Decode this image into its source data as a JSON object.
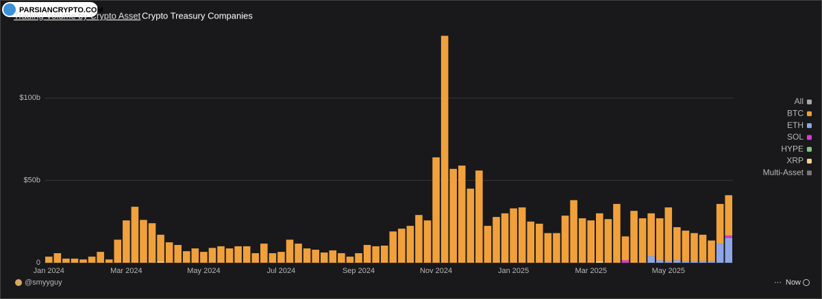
{
  "header": {
    "watermark": "PARSIANCRYPTO.COM",
    "tabs": [
      "Trading Volume by Crypto Asset",
      "Crypto Treasury Companies"
    ],
    "author": "@smyyguy",
    "time": "Now"
  },
  "chart_data": {
    "type": "bar",
    "stacked": true,
    "categories": [
      "Jan 2024",
      null,
      null,
      null,
      null,
      null,
      null,
      null,
      null,
      "Mar 2024",
      null,
      null,
      null,
      null,
      null,
      null,
      null,
      null,
      "May 2024",
      null,
      null,
      null,
      null,
      null,
      null,
      null,
      null,
      "Jul 2024",
      null,
      null,
      null,
      null,
      null,
      null,
      null,
      null,
      "Sep 2024",
      null,
      null,
      null,
      null,
      null,
      null,
      null,
      null,
      "Nov 2024",
      null,
      null,
      null,
      null,
      null,
      null,
      null,
      null,
      "Jan 2025",
      null,
      null,
      null,
      null,
      null,
      null,
      null,
      null,
      "Mar 2025",
      null,
      null,
      null,
      null,
      null,
      null,
      null,
      null,
      "May 2025",
      null,
      null,
      null,
      null,
      null,
      null,
      null
    ],
    "series": [
      {
        "name": "All",
        "color": "#a8a8a8",
        "values": [
          0,
          0,
          0,
          0,
          0,
          0,
          0,
          0,
          0,
          0,
          0,
          0,
          0,
          0,
          0,
          0,
          0,
          0,
          0,
          0,
          0,
          0,
          0,
          0,
          0,
          0,
          0,
          0,
          0,
          0,
          0,
          0,
          0,
          0,
          0,
          0,
          0,
          0,
          0,
          0,
          0,
          0,
          0,
          0,
          0,
          0,
          0,
          0,
          0,
          0,
          0,
          0,
          0,
          0,
          0,
          0,
          0,
          0,
          0,
          0,
          0,
          0,
          0,
          0,
          0,
          0,
          0,
          0,
          0,
          0,
          0,
          0,
          0,
          0,
          0,
          0,
          0,
          0,
          0,
          0
        ]
      },
      {
        "name": "BTC",
        "color": "#f0a13c",
        "values": [
          3.7,
          5.8,
          2.5,
          2.5,
          2,
          3.7,
          6.6,
          2,
          14,
          25.7,
          34,
          26,
          24,
          16.2,
          12.4,
          10.8,
          7,
          8.7,
          6.6,
          9,
          10,
          8.7,
          10,
          10,
          5.8,
          11.6,
          5.8,
          6.6,
          14,
          11.6,
          8.7,
          7.9,
          6.2,
          7.5,
          5.8,
          3.7,
          5.8,
          10.8,
          10,
          10.4,
          19,
          20.7,
          22.4,
          29,
          25.7,
          64,
          137.8,
          57,
          59,
          45,
          56,
          22.4,
          27.8,
          30,
          33,
          33.6,
          25,
          23.7,
          18,
          18,
          28.6,
          38,
          27,
          25.7,
          29.2,
          26.5,
          35.7,
          14.5,
          31.5,
          27,
          26,
          25.5,
          32.6,
          20.1,
          18.5,
          17,
          16,
          12.5,
          24.1,
          24.5
        ]
      },
      {
        "name": "ETH",
        "color": "#8ea6e6",
        "values": [
          0,
          0,
          0,
          0,
          0,
          0,
          0,
          0,
          0,
          0,
          0,
          0,
          0,
          0,
          0,
          0,
          0,
          0,
          0,
          0,
          0,
          0,
          0,
          0,
          0,
          0,
          0,
          0,
          0,
          0,
          0,
          0,
          0,
          0,
          0,
          0,
          0,
          0,
          0,
          0,
          0,
          0,
          0,
          0,
          0,
          0,
          0,
          0,
          0,
          0,
          0,
          0,
          0,
          0,
          0,
          0,
          0,
          0,
          0,
          0,
          0,
          0,
          0,
          0,
          0,
          0,
          0,
          0,
          0,
          0,
          4,
          1.5,
          1,
          1.5,
          1,
          1,
          1,
          1,
          11.6,
          15
        ]
      },
      {
        "name": "SOL",
        "color": "#d23fd6",
        "values": [
          0,
          0,
          0,
          0,
          0,
          0,
          0,
          0,
          0,
          0,
          0,
          0,
          0,
          0,
          0,
          0,
          0,
          0,
          0,
          0,
          0,
          0,
          0,
          0,
          0,
          0,
          0,
          0,
          0,
          0,
          0,
          0,
          0,
          0,
          0,
          0,
          0,
          0,
          0,
          0,
          0,
          0,
          0,
          0,
          0,
          0,
          0,
          0,
          0,
          0,
          0,
          0,
          0,
          0,
          0,
          0,
          0,
          0,
          0,
          0,
          0,
          0,
          0,
          0,
          0,
          0,
          0,
          1.5,
          0,
          0,
          0,
          0,
          0,
          0,
          0,
          0,
          0,
          0,
          0,
          1.5
        ]
      },
      {
        "name": "HYPE",
        "color": "#7ec87c",
        "values": [
          0,
          0,
          0,
          0,
          0,
          0,
          0,
          0,
          0,
          0,
          0,
          0,
          0,
          0,
          0,
          0,
          0,
          0,
          0,
          0,
          0,
          0,
          0,
          0,
          0,
          0,
          0,
          0,
          0,
          0,
          0,
          0,
          0,
          0,
          0,
          0,
          0,
          0,
          0,
          0,
          0,
          0,
          0,
          0,
          0,
          0,
          0,
          0,
          0,
          0,
          0,
          0,
          0,
          0,
          0,
          0,
          0,
          0,
          0,
          0,
          0,
          0,
          0,
          0,
          0,
          0,
          0,
          0,
          0,
          0,
          0,
          0,
          0,
          0,
          0,
          0,
          0,
          0,
          0,
          0
        ]
      },
      {
        "name": "XRP",
        "color": "#f2d38a",
        "values": [
          0,
          0,
          0,
          0,
          0,
          0,
          0,
          0,
          0,
          0,
          0,
          0,
          0,
          0.8,
          0,
          0,
          0,
          0,
          0,
          0,
          0,
          0,
          0,
          0,
          0,
          0,
          0,
          0,
          0,
          0,
          0,
          0,
          0,
          0,
          0,
          0,
          0,
          0,
          0,
          0,
          0,
          0,
          0,
          0,
          0,
          0,
          0,
          0,
          0,
          0,
          0,
          0,
          0,
          0,
          0,
          0,
          0,
          0,
          0,
          0,
          0,
          0,
          0,
          0,
          0.8,
          0,
          0,
          0,
          0,
          0,
          0,
          0,
          0,
          0,
          0,
          0,
          0,
          0,
          0,
          0
        ]
      },
      {
        "name": "Multi-Asset",
        "color": "#777777",
        "values": [
          0,
          0,
          0,
          0,
          0,
          0,
          0,
          0,
          0,
          0,
          0,
          0,
          0,
          0,
          0,
          0,
          0,
          0,
          0,
          0,
          0,
          0,
          0,
          0,
          0,
          0,
          0,
          0,
          0,
          0,
          0,
          0,
          0,
          0,
          0,
          0,
          0,
          0,
          0,
          0,
          0,
          0,
          0,
          0,
          0,
          0,
          0,
          0,
          0,
          0,
          0,
          0,
          0,
          0,
          0,
          0,
          0,
          0,
          0,
          0,
          0,
          0,
          0,
          0,
          0,
          0,
          0,
          0,
          0,
          0,
          0,
          0,
          0,
          0,
          0,
          0,
          0,
          0,
          0,
          0
        ]
      }
    ],
    "ylim": [
      0,
      145
    ],
    "yticks": [
      0,
      {
        "value": 50,
        "label": "$50b"
      },
      {
        "value": 100,
        "label": "$100b"
      }
    ],
    "grid": true,
    "legend": "right"
  }
}
